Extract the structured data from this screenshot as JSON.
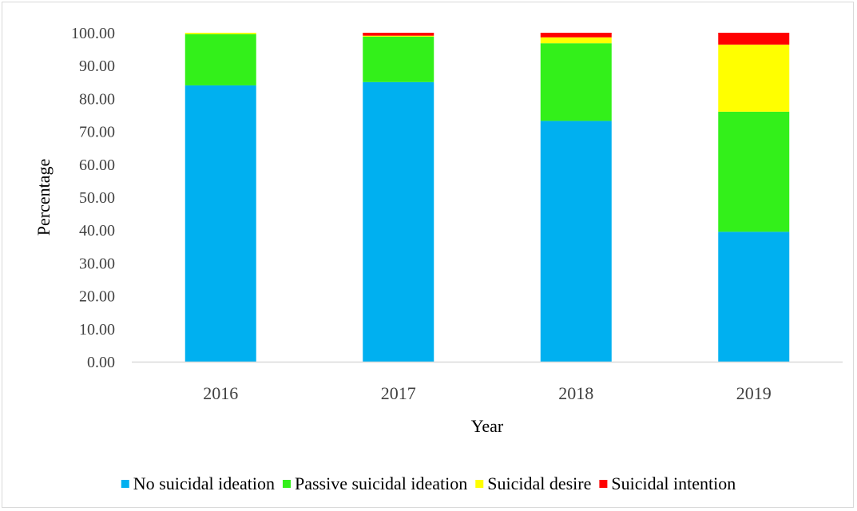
{
  "chart_data": {
    "type": "bar",
    "stacked": true,
    "categories": [
      "2016",
      "2017",
      "2018",
      "2019"
    ],
    "series": [
      {
        "name": "No suicidal ideation",
        "color": "#00B0F0",
        "values": [
          84.0,
          85.0,
          73.2,
          39.5
        ]
      },
      {
        "name": "Passive suicidal ideation",
        "color": "#33F01A",
        "values": [
          15.6,
          13.8,
          23.6,
          36.5
        ]
      },
      {
        "name": "Suicidal desire",
        "color": "#FFFF00",
        "values": [
          0.4,
          0.3,
          1.8,
          20.4
        ]
      },
      {
        "name": "Suicidal intention",
        "color": "#FF0000",
        "values": [
          0.0,
          0.9,
          1.4,
          3.6
        ]
      }
    ],
    "xlabel": "Year",
    "ylabel": "Percentage",
    "ylim": [
      0,
      100
    ],
    "yticks": [
      "0.00",
      "10.00",
      "20.00",
      "30.00",
      "40.00",
      "50.00",
      "60.00",
      "70.00",
      "80.00",
      "90.00",
      "100.00"
    ],
    "grid": false,
    "legend": "bottom"
  }
}
